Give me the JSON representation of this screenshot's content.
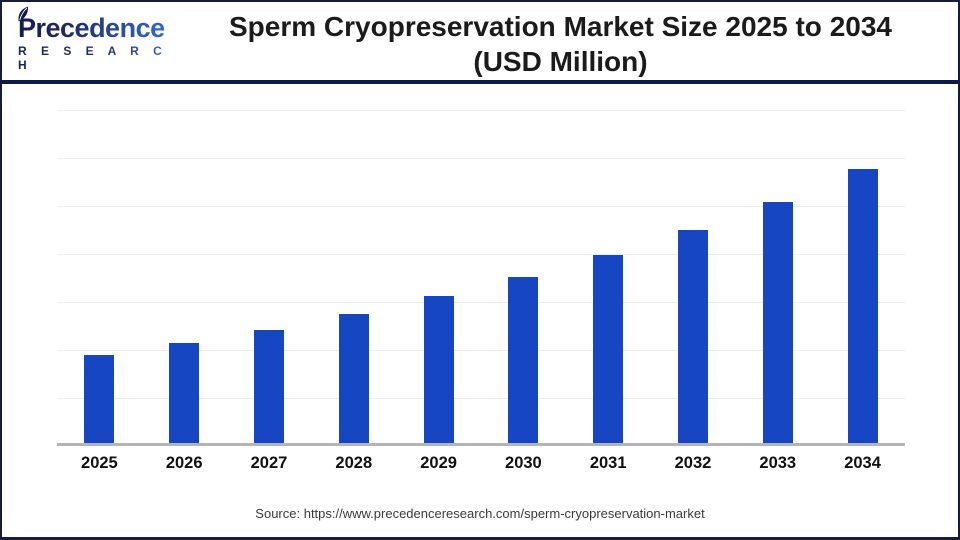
{
  "header": {
    "logo": {
      "line1": "Precedence",
      "line2": "R E S E A R C H"
    },
    "title_line1": "Sperm Cryopreservation Market Size 2025 to 2034",
    "title_line2": "(USD Million)"
  },
  "chart_data": {
    "type": "bar",
    "title": "Sperm Cryopreservation Market Size 2025 to 2034 (USD Million)",
    "categories": [
      "2025",
      "2026",
      "2027",
      "2028",
      "2029",
      "2030",
      "2031",
      "2032",
      "2033",
      "2034"
    ],
    "values": [
      100,
      114,
      128,
      147,
      167,
      189,
      214,
      242,
      274,
      311
    ],
    "value_scale": "relative units estimated from bar heights; no y-axis tick labels shown (2025 = 100)",
    "xlabel": "",
    "ylabel": "",
    "ylim": [
      0,
      382
    ],
    "grid": true,
    "gridline_count": 7,
    "legend": "none",
    "bar_color": "#1746c3"
  },
  "footer": {
    "source": "Source: https://www.precedenceresearch.com/sperm-cryopreservation-market"
  },
  "colors": {
    "bar": "#1746c3",
    "divider_navy": "#0e1a4a",
    "page_border": "#181c38",
    "gridline": "#ededed",
    "axis_baseline": "#b4b4b4",
    "title_text": "#1b1b1b",
    "logo_navy": "#151d4e",
    "logo_blue": "#3a6fd6"
  }
}
